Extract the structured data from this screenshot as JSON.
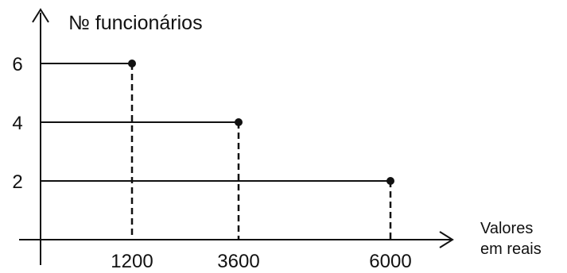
{
  "chart_data": {
    "type": "scatter",
    "ylabel": "№ funcionários",
    "xlabel_lines": [
      "Valores",
      "em reais"
    ],
    "points": [
      {
        "x": 1200,
        "y": 6
      },
      {
        "x": 3600,
        "y": 4
      },
      {
        "x": 6000,
        "y": 2
      }
    ],
    "x_ticks": [
      "1200",
      "3600",
      "6000"
    ],
    "y_ticks": [
      "6",
      "4",
      "2"
    ],
    "grid": false,
    "legend": "none"
  },
  "colors": {
    "ink": "#111111"
  }
}
